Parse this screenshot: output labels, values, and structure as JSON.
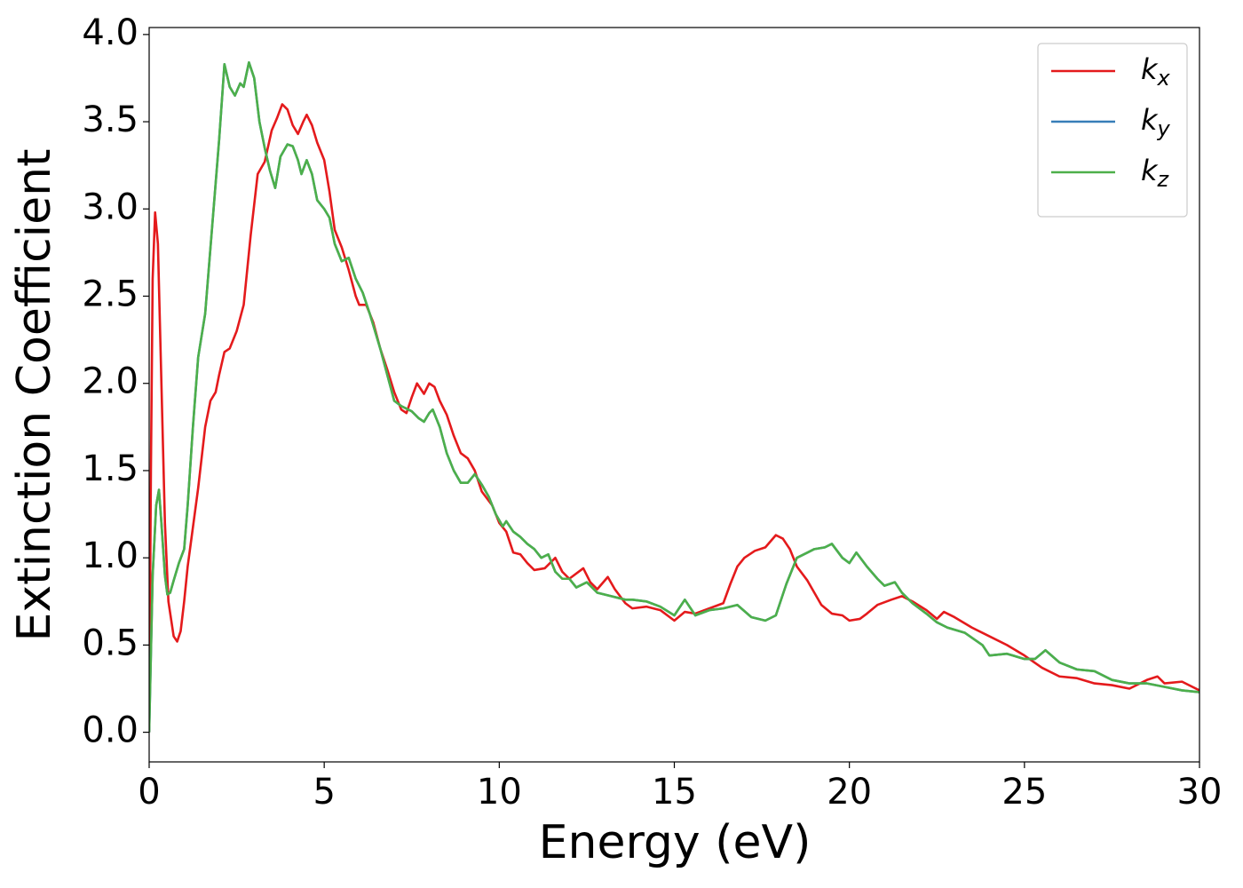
{
  "chart_data": {
    "type": "line",
    "xlabel": "Energy (eV)",
    "ylabel": "Extinction Coefficient",
    "xlim": [
      0,
      30
    ],
    "ylim": [
      -0.17,
      4.04
    ],
    "xticks": [
      0,
      5,
      10,
      15,
      20,
      25,
      30
    ],
    "yticks": [
      {
        "value": 0,
        "label": "0.0"
      },
      0.5,
      {
        "value": 1,
        "label": "1.0"
      },
      1.5,
      {
        "value": 2,
        "label": "2.0"
      },
      2.5,
      {
        "value": 3,
        "label": "3.0"
      },
      3.5,
      {
        "value": 4,
        "label": "4.0"
      }
    ],
    "legend": "upper right",
    "series": [
      {
        "name": "k",
        "subscript": "x",
        "color": "#e41a1c",
        "x": [
          0,
          0.05,
          0.1,
          0.17,
          0.25,
          0.35,
          0.45,
          0.55,
          0.7,
          0.8,
          0.9,
          1.0,
          1.1,
          1.2,
          1.4,
          1.6,
          1.75,
          1.9,
          2.0,
          2.15,
          2.3,
          2.5,
          2.7,
          2.9,
          3.1,
          3.3,
          3.5,
          3.65,
          3.8,
          3.95,
          4.1,
          4.25,
          4.4,
          4.5,
          4.65,
          4.8,
          5.0,
          5.15,
          5.3,
          5.5,
          5.7,
          5.9,
          6.0,
          6.2,
          6.4,
          6.6,
          6.8,
          7.0,
          7.2,
          7.35,
          7.5,
          7.65,
          7.85,
          8.0,
          8.15,
          8.3,
          8.5,
          8.7,
          8.9,
          9.1,
          9.3,
          9.5,
          9.8,
          10.0,
          10.2,
          10.4,
          10.6,
          10.8,
          11.0,
          11.3,
          11.6,
          11.8,
          12.0,
          12.4,
          12.6,
          12.8,
          13.1,
          13.3,
          13.6,
          13.8,
          14.2,
          14.6,
          15.0,
          15.3,
          15.6,
          16.0,
          16.4,
          16.6,
          16.8,
          17.0,
          17.3,
          17.6,
          17.9,
          18.1,
          18.3,
          18.5,
          18.8,
          19.0,
          19.2,
          19.5,
          19.8,
          20.0,
          20.3,
          20.5,
          20.8,
          21.2,
          21.5,
          21.8,
          22.2,
          22.5,
          22.7,
          23.0,
          23.5,
          24.0,
          24.5,
          25.0,
          25.5,
          26.0,
          26.5,
          27.0,
          27.5,
          28.0,
          28.5,
          28.8,
          29.0,
          29.5,
          30.0
        ],
        "values": [
          0,
          1.5,
          2.6,
          2.98,
          2.8,
          2.0,
          1.2,
          0.75,
          0.55,
          0.52,
          0.58,
          0.75,
          0.95,
          1.1,
          1.4,
          1.75,
          1.9,
          1.95,
          2.05,
          2.18,
          2.2,
          2.3,
          2.45,
          2.85,
          3.2,
          3.27,
          3.45,
          3.52,
          3.6,
          3.57,
          3.48,
          3.43,
          3.5,
          3.54,
          3.48,
          3.38,
          3.28,
          3.1,
          2.88,
          2.78,
          2.65,
          2.5,
          2.45,
          2.45,
          2.35,
          2.2,
          2.08,
          1.95,
          1.85,
          1.83,
          1.92,
          2.0,
          1.94,
          2.0,
          1.98,
          1.9,
          1.82,
          1.7,
          1.6,
          1.57,
          1.5,
          1.38,
          1.3,
          1.2,
          1.15,
          1.03,
          1.02,
          0.97,
          0.93,
          0.94,
          1.0,
          0.92,
          0.88,
          0.94,
          0.86,
          0.82,
          0.89,
          0.82,
          0.74,
          0.71,
          0.72,
          0.7,
          0.64,
          0.69,
          0.68,
          0.71,
          0.74,
          0.85,
          0.95,
          1.0,
          1.04,
          1.06,
          1.13,
          1.11,
          1.05,
          0.95,
          0.87,
          0.8,
          0.73,
          0.68,
          0.67,
          0.64,
          0.65,
          0.68,
          0.73,
          0.76,
          0.78,
          0.75,
          0.7,
          0.65,
          0.69,
          0.66,
          0.6,
          0.55,
          0.5,
          0.44,
          0.37,
          0.32,
          0.31,
          0.28,
          0.27,
          0.25,
          0.3,
          0.32,
          0.28,
          0.29,
          0.24
        ]
      },
      {
        "name": "k",
        "subscript": "y",
        "color": "#377eb8",
        "x": [
          0,
          0.1,
          0.2,
          0.28,
          0.35,
          0.45,
          0.52,
          0.6,
          0.7,
          0.85,
          1.0,
          1.1,
          1.25,
          1.4,
          1.6,
          1.8,
          2.0,
          2.15,
          2.3,
          2.45,
          2.6,
          2.7,
          2.85,
          3.0,
          3.15,
          3.3,
          3.45,
          3.6,
          3.75,
          3.95,
          4.1,
          4.25,
          4.35,
          4.5,
          4.65,
          4.8,
          5.0,
          5.15,
          5.3,
          5.5,
          5.7,
          5.9,
          6.1,
          6.3,
          6.6,
          6.8,
          7.0,
          7.2,
          7.5,
          7.7,
          7.85,
          8.0,
          8.1,
          8.3,
          8.5,
          8.7,
          8.9,
          9.1,
          9.3,
          9.5,
          9.7,
          9.9,
          10.1,
          10.2,
          10.4,
          10.6,
          10.8,
          11.0,
          11.2,
          11.4,
          11.6,
          11.8,
          12.0,
          12.2,
          12.5,
          12.8,
          13.2,
          13.6,
          13.8,
          14.2,
          14.6,
          15.0,
          15.3,
          15.6,
          16.0,
          16.4,
          16.8,
          17.2,
          17.6,
          17.9,
          18.2,
          18.5,
          18.8,
          19.0,
          19.3,
          19.5,
          19.8,
          20.0,
          20.2,
          20.5,
          20.8,
          21.0,
          21.3,
          21.5,
          21.8,
          22.2,
          22.5,
          22.8,
          23.3,
          23.8,
          24.0,
          24.5,
          25.0,
          25.3,
          25.6,
          26.0,
          26.5,
          27.0,
          27.5,
          28.0,
          28.5,
          29.0,
          29.5,
          30.0
        ],
        "values": [
          0,
          0.9,
          1.3,
          1.39,
          1.2,
          0.9,
          0.79,
          0.8,
          0.87,
          0.97,
          1.05,
          1.3,
          1.75,
          2.15,
          2.4,
          2.9,
          3.4,
          3.83,
          3.7,
          3.65,
          3.72,
          3.7,
          3.84,
          3.75,
          3.5,
          3.35,
          3.22,
          3.12,
          3.3,
          3.37,
          3.36,
          3.28,
          3.2,
          3.28,
          3.2,
          3.05,
          3.0,
          2.95,
          2.8,
          2.7,
          2.72,
          2.6,
          2.52,
          2.4,
          2.2,
          2.05,
          1.9,
          1.87,
          1.84,
          1.8,
          1.78,
          1.83,
          1.85,
          1.75,
          1.6,
          1.5,
          1.43,
          1.43,
          1.48,
          1.42,
          1.35,
          1.25,
          1.18,
          1.21,
          1.15,
          1.12,
          1.08,
          1.05,
          1.0,
          1.02,
          0.92,
          0.88,
          0.88,
          0.83,
          0.86,
          0.8,
          0.78,
          0.76,
          0.76,
          0.75,
          0.72,
          0.67,
          0.76,
          0.67,
          0.7,
          0.71,
          0.73,
          0.66,
          0.64,
          0.67,
          0.85,
          1.0,
          1.03,
          1.05,
          1.06,
          1.08,
          1.0,
          0.97,
          1.03,
          0.95,
          0.88,
          0.84,
          0.86,
          0.8,
          0.74,
          0.68,
          0.63,
          0.6,
          0.57,
          0.5,
          0.44,
          0.45,
          0.42,
          0.42,
          0.47,
          0.4,
          0.36,
          0.35,
          0.3,
          0.28,
          0.28,
          0.26,
          0.24,
          0.23
        ]
      },
      {
        "name": "k",
        "subscript": "z",
        "color": "#4daf4a",
        "x": [
          0,
          0.1,
          0.2,
          0.28,
          0.35,
          0.45,
          0.52,
          0.6,
          0.7,
          0.85,
          1.0,
          1.1,
          1.25,
          1.4,
          1.6,
          1.8,
          2.0,
          2.15,
          2.3,
          2.45,
          2.6,
          2.7,
          2.85,
          3.0,
          3.15,
          3.3,
          3.45,
          3.6,
          3.75,
          3.95,
          4.1,
          4.25,
          4.35,
          4.5,
          4.65,
          4.8,
          5.0,
          5.15,
          5.3,
          5.5,
          5.7,
          5.9,
          6.1,
          6.3,
          6.6,
          6.8,
          7.0,
          7.2,
          7.5,
          7.7,
          7.85,
          8.0,
          8.1,
          8.3,
          8.5,
          8.7,
          8.9,
          9.1,
          9.3,
          9.5,
          9.7,
          9.9,
          10.1,
          10.2,
          10.4,
          10.6,
          10.8,
          11.0,
          11.2,
          11.4,
          11.6,
          11.8,
          12.0,
          12.2,
          12.5,
          12.8,
          13.2,
          13.6,
          13.8,
          14.2,
          14.6,
          15.0,
          15.3,
          15.6,
          16.0,
          16.4,
          16.8,
          17.2,
          17.6,
          17.9,
          18.2,
          18.5,
          18.8,
          19.0,
          19.3,
          19.5,
          19.8,
          20.0,
          20.2,
          20.5,
          20.8,
          21.0,
          21.3,
          21.5,
          21.8,
          22.2,
          22.5,
          22.8,
          23.3,
          23.8,
          24.0,
          24.5,
          25.0,
          25.3,
          25.6,
          26.0,
          26.5,
          27.0,
          27.5,
          28.0,
          28.5,
          29.0,
          29.5,
          30.0
        ],
        "values": [
          0,
          0.9,
          1.3,
          1.39,
          1.2,
          0.9,
          0.79,
          0.8,
          0.87,
          0.97,
          1.05,
          1.3,
          1.75,
          2.15,
          2.4,
          2.9,
          3.4,
          3.83,
          3.7,
          3.65,
          3.72,
          3.7,
          3.84,
          3.75,
          3.5,
          3.35,
          3.22,
          3.12,
          3.3,
          3.37,
          3.36,
          3.28,
          3.2,
          3.28,
          3.2,
          3.05,
          3.0,
          2.95,
          2.8,
          2.7,
          2.72,
          2.6,
          2.52,
          2.4,
          2.2,
          2.05,
          1.9,
          1.87,
          1.84,
          1.8,
          1.78,
          1.83,
          1.85,
          1.75,
          1.6,
          1.5,
          1.43,
          1.43,
          1.48,
          1.42,
          1.35,
          1.25,
          1.18,
          1.21,
          1.15,
          1.12,
          1.08,
          1.05,
          1.0,
          1.02,
          0.92,
          0.88,
          0.88,
          0.83,
          0.86,
          0.8,
          0.78,
          0.76,
          0.76,
          0.75,
          0.72,
          0.67,
          0.76,
          0.67,
          0.7,
          0.71,
          0.73,
          0.66,
          0.64,
          0.67,
          0.85,
          1.0,
          1.03,
          1.05,
          1.06,
          1.08,
          1.0,
          0.97,
          1.03,
          0.95,
          0.88,
          0.84,
          0.86,
          0.8,
          0.74,
          0.68,
          0.63,
          0.6,
          0.57,
          0.5,
          0.44,
          0.45,
          0.42,
          0.42,
          0.47,
          0.4,
          0.36,
          0.35,
          0.3,
          0.28,
          0.28,
          0.26,
          0.24,
          0.23
        ]
      }
    ]
  }
}
